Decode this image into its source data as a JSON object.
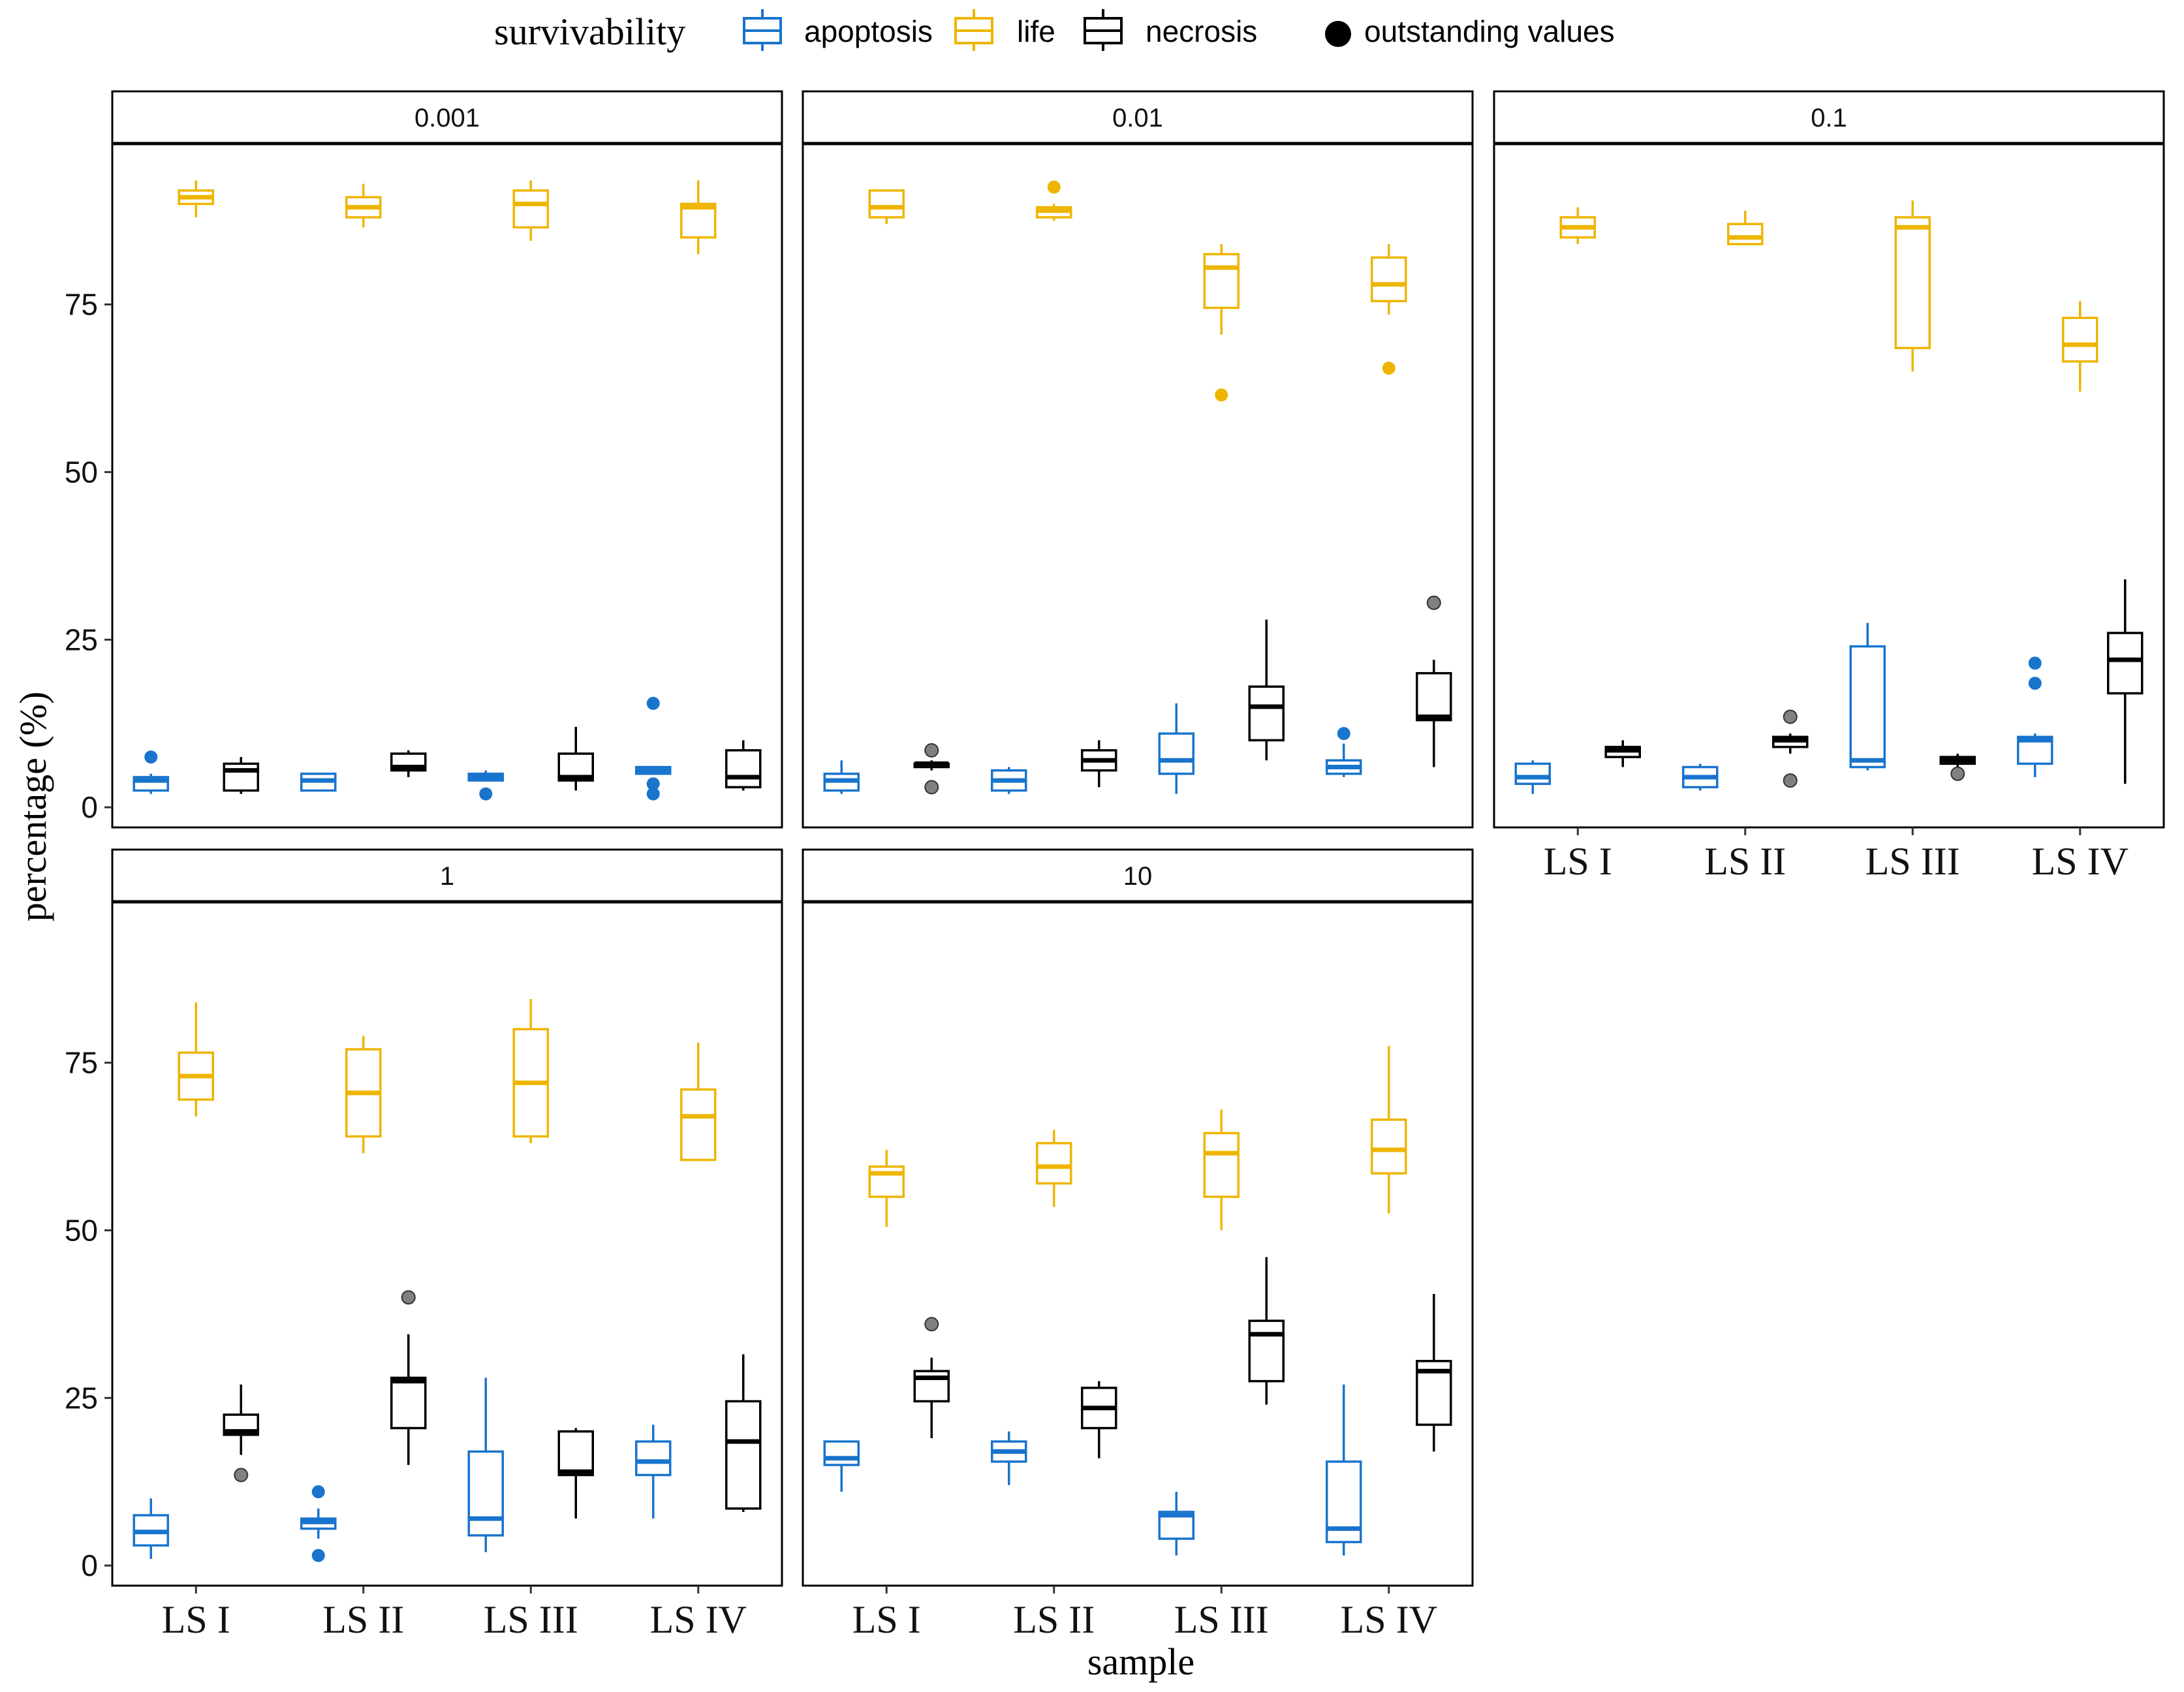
{
  "chart_data": {
    "type": "boxplot",
    "xlabel": "sample",
    "ylabel": "percentage (%)",
    "categories": [
      "LS I",
      "LS II",
      "LS III",
      "LS IV"
    ],
    "yticks": [
      0,
      25,
      50,
      75
    ],
    "ylim": [
      -3,
      99
    ],
    "grid": false,
    "legend": {
      "title": "survivability",
      "position": "top",
      "entries": [
        {
          "key": "apoptosis",
          "label": "apoptosis",
          "color": "#1874CD"
        },
        {
          "key": "life",
          "label": "life",
          "color": "#EEB500"
        },
        {
          "key": "necrosis",
          "label": "necrosis",
          "color": "#000000"
        }
      ],
      "outlier_label": "outstanding values"
    },
    "colors": {
      "apoptosis": "#1874CD",
      "life": "#EEB500",
      "necrosis": "#000000",
      "necrosis_outlier": "#808080"
    },
    "panels": [
      {
        "label": "0.001",
        "groups": [
          {
            "category": "LS I",
            "apoptosis": {
              "min": 2,
              "q1": 2.5,
              "median": 4,
              "q3": 4.5,
              "max": 5,
              "outliers": [
                7.5
              ]
            },
            "life": {
              "min": 88,
              "q1": 90,
              "median": 91,
              "q3": 92,
              "max": 93.5,
              "outliers": []
            },
            "necrosis": {
              "min": 2,
              "q1": 2.5,
              "median": 5.5,
              "q3": 6.5,
              "max": 7.5,
              "outliers": []
            }
          },
          {
            "category": "LS II",
            "apoptosis": {
              "min": 2.5,
              "q1": 2.5,
              "median": 4,
              "q3": 5,
              "max": 5,
              "outliers": []
            },
            "life": {
              "min": 86.5,
              "q1": 88,
              "median": 89.5,
              "q3": 91,
              "max": 93,
              "outliers": []
            },
            "necrosis": {
              "min": 4.5,
              "q1": 5.5,
              "median": 6,
              "q3": 8,
              "max": 8.5,
              "outliers": []
            }
          },
          {
            "category": "LS III",
            "apoptosis": {
              "min": 4,
              "q1": 4,
              "median": 4.5,
              "q3": 5,
              "max": 5.5,
              "outliers": [
                2
              ]
            },
            "life": {
              "min": 84.5,
              "q1": 86.5,
              "median": 90,
              "q3": 92,
              "max": 93.5,
              "outliers": []
            },
            "necrosis": {
              "min": 2.5,
              "q1": 4,
              "median": 4.5,
              "q3": 8,
              "max": 12,
              "outliers": []
            }
          },
          {
            "category": "LS IV",
            "apoptosis": {
              "min": 5,
              "q1": 5,
              "median": 5.5,
              "q3": 6,
              "max": 6,
              "outliers": [
                2,
                3.5,
                15.5
              ]
            },
            "life": {
              "min": 82.5,
              "q1": 85,
              "median": 89.5,
              "q3": 90,
              "max": 93.5,
              "outliers": []
            },
            "necrosis": {
              "min": 2.5,
              "q1": 3,
              "median": 4.5,
              "q3": 8.5,
              "max": 10,
              "outliers": []
            }
          }
        ]
      },
      {
        "label": "0.01",
        "groups": [
          {
            "category": "LS I",
            "apoptosis": {
              "min": 2,
              "q1": 2.5,
              "median": 4,
              "q3": 5,
              "max": 7,
              "outliers": []
            },
            "life": {
              "min": 87,
              "q1": 88,
              "median": 89.5,
              "q3": 92,
              "max": 92,
              "outliers": []
            },
            "necrosis": {
              "min": 5.5,
              "q1": 6,
              "median": 6.5,
              "q3": 6.5,
              "max": 7,
              "outliers": [
                3,
                8.5
              ]
            }
          },
          {
            "category": "LS II",
            "apoptosis": {
              "min": 2,
              "q1": 2.5,
              "median": 4,
              "q3": 5.5,
              "max": 6,
              "outliers": []
            },
            "life": {
              "min": 87.5,
              "q1": 88,
              "median": 89,
              "q3": 89.5,
              "max": 90,
              "outliers": [
                92.5
              ]
            },
            "necrosis": {
              "min": 3,
              "q1": 5.5,
              "median": 7,
              "q3": 8.5,
              "max": 10,
              "outliers": []
            }
          },
          {
            "category": "LS III",
            "apoptosis": {
              "min": 2,
              "q1": 5,
              "median": 7,
              "q3": 11,
              "max": 15.5,
              "outliers": []
            },
            "life": {
              "min": 70.5,
              "q1": 74.5,
              "median": 80.5,
              "q3": 82.5,
              "max": 84,
              "outliers": [
                61.5
              ]
            },
            "necrosis": {
              "min": 7,
              "q1": 10,
              "median": 15,
              "q3": 18,
              "max": 28,
              "outliers": []
            }
          },
          {
            "category": "LS IV",
            "apoptosis": {
              "min": 4.5,
              "q1": 5,
              "median": 6,
              "q3": 7,
              "max": 9.5,
              "outliers": [
                11
              ]
            },
            "life": {
              "min": 73.5,
              "q1": 75.5,
              "median": 78,
              "q3": 82,
              "max": 84,
              "outliers": [
                65.5
              ]
            },
            "necrosis": {
              "min": 6,
              "q1": 13,
              "median": 13.5,
              "q3": 20,
              "max": 22,
              "outliers": [
                30.5
              ]
            }
          }
        ]
      },
      {
        "label": "0.1",
        "groups": [
          {
            "category": "LS I",
            "apoptosis": {
              "min": 2,
              "q1": 3.5,
              "median": 4.5,
              "q3": 6.5,
              "max": 7,
              "outliers": []
            },
            "life": {
              "min": 84,
              "q1": 85,
              "median": 86.5,
              "q3": 88,
              "max": 89.5,
              "outliers": []
            },
            "necrosis": {
              "min": 6,
              "q1": 7.5,
              "median": 8.5,
              "q3": 9,
              "max": 10,
              "outliers": []
            }
          },
          {
            "category": "LS II",
            "apoptosis": {
              "min": 2.5,
              "q1": 3,
              "median": 4.5,
              "q3": 6,
              "max": 6.5,
              "outliers": []
            },
            "life": {
              "min": 84,
              "q1": 84,
              "median": 85,
              "q3": 87,
              "max": 89,
              "outliers": []
            },
            "necrosis": {
              "min": 8,
              "q1": 9,
              "median": 10,
              "q3": 10.5,
              "max": 11,
              "outliers": [
                4,
                13.5
              ]
            }
          },
          {
            "category": "LS III",
            "apoptosis": {
              "min": 5.5,
              "q1": 6,
              "median": 7,
              "q3": 24,
              "max": 27.5,
              "outliers": []
            },
            "life": {
              "min": 65,
              "q1": 68.5,
              "median": 86.5,
              "q3": 88,
              "max": 90.5,
              "outliers": []
            },
            "necrosis": {
              "min": 6,
              "q1": 6.5,
              "median": 7,
              "q3": 7.5,
              "max": 8,
              "outliers": [
                5
              ]
            }
          },
          {
            "category": "LS IV",
            "apoptosis": {
              "min": 4.5,
              "q1": 6.5,
              "median": 10,
              "q3": 10.5,
              "max": 11,
              "outliers": [
                18.5,
                21.5
              ]
            },
            "life": {
              "min": 62,
              "q1": 66.5,
              "median": 69,
              "q3": 73,
              "max": 75.5,
              "outliers": []
            },
            "necrosis": {
              "min": 3.5,
              "q1": 17,
              "median": 22,
              "q3": 26,
              "max": 34,
              "outliers": []
            }
          }
        ]
      },
      {
        "label": "1",
        "groups": [
          {
            "category": "LS I",
            "apoptosis": {
              "min": 1,
              "q1": 3,
              "median": 5,
              "q3": 7.5,
              "max": 10,
              "outliers": []
            },
            "life": {
              "min": 67,
              "q1": 69.5,
              "median": 73,
              "q3": 76.5,
              "max": 84,
              "outliers": []
            },
            "necrosis": {
              "min": 16.5,
              "q1": 19.5,
              "median": 20,
              "q3": 22.5,
              "max": 27,
              "outliers": [
                13.5
              ]
            }
          },
          {
            "category": "LS II",
            "apoptosis": {
              "min": 4,
              "q1": 5.5,
              "median": 6.5,
              "q3": 7,
              "max": 8.5,
              "outliers": [
                1.5,
                11
              ]
            },
            "life": {
              "min": 61.5,
              "q1": 64,
              "median": 70.5,
              "q3": 77,
              "max": 79,
              "outliers": []
            },
            "necrosis": {
              "min": 15,
              "q1": 20.5,
              "median": 27.5,
              "q3": 28,
              "max": 34.5,
              "outliers": [
                40
              ]
            }
          },
          {
            "category": "LS III",
            "apoptosis": {
              "min": 2,
              "q1": 4.5,
              "median": 7,
              "q3": 17,
              "max": 28,
              "outliers": []
            },
            "life": {
              "min": 63,
              "q1": 64,
              "median": 72,
              "q3": 80,
              "max": 84.5,
              "outliers": []
            },
            "necrosis": {
              "min": 7,
              "q1": 13.5,
              "median": 14,
              "q3": 20,
              "max": 20.5,
              "outliers": []
            }
          },
          {
            "category": "LS IV",
            "apoptosis": {
              "min": 7,
              "q1": 13.5,
              "median": 15.5,
              "q3": 18.5,
              "max": 21,
              "outliers": []
            },
            "life": {
              "min": 60.5,
              "q1": 60.5,
              "median": 67,
              "q3": 71,
              "max": 78,
              "outliers": []
            },
            "necrosis": {
              "min": 8,
              "q1": 8.5,
              "median": 18.5,
              "q3": 24.5,
              "max": 31.5,
              "outliers": []
            }
          }
        ]
      },
      {
        "label": "10",
        "groups": [
          {
            "category": "LS I",
            "apoptosis": {
              "min": 11,
              "q1": 15,
              "median": 16,
              "q3": 18.5,
              "max": 18.5,
              "outliers": []
            },
            "life": {
              "min": 50.5,
              "q1": 55,
              "median": 58.5,
              "q3": 59.5,
              "max": 62,
              "outliers": []
            },
            "necrosis": {
              "min": 19,
              "q1": 24.5,
              "median": 28,
              "q3": 29,
              "max": 31,
              "outliers": [
                36
              ]
            }
          },
          {
            "category": "LS II",
            "apoptosis": {
              "min": 12,
              "q1": 15.5,
              "median": 17,
              "q3": 18.5,
              "max": 20,
              "outliers": []
            },
            "life": {
              "min": 53.5,
              "q1": 57,
              "median": 59.5,
              "q3": 63,
              "max": 65,
              "outliers": []
            },
            "necrosis": {
              "min": 16,
              "q1": 20.5,
              "median": 23.5,
              "q3": 26.5,
              "max": 27.5,
              "outliers": []
            }
          },
          {
            "category": "LS III",
            "apoptosis": {
              "min": 1.5,
              "q1": 4,
              "median": 7.5,
              "q3": 8,
              "max": 11,
              "outliers": []
            },
            "life": {
              "min": 50,
              "q1": 55,
              "median": 61.5,
              "q3": 64.5,
              "max": 68,
              "outliers": []
            },
            "necrosis": {
              "min": 24,
              "q1": 27.5,
              "median": 34.5,
              "q3": 36.5,
              "max": 46,
              "outliers": []
            }
          },
          {
            "category": "LS IV",
            "apoptosis": {
              "min": 1.5,
              "q1": 3.5,
              "median": 5.5,
              "q3": 15.5,
              "max": 27,
              "outliers": []
            },
            "life": {
              "min": 52.5,
              "q1": 58.5,
              "median": 62,
              "q3": 66.5,
              "max": 77.5,
              "outliers": []
            },
            "necrosis": {
              "min": 17,
              "q1": 21,
              "median": 29,
              "q3": 30.5,
              "max": 40.5,
              "outliers": []
            }
          }
        ]
      }
    ]
  }
}
